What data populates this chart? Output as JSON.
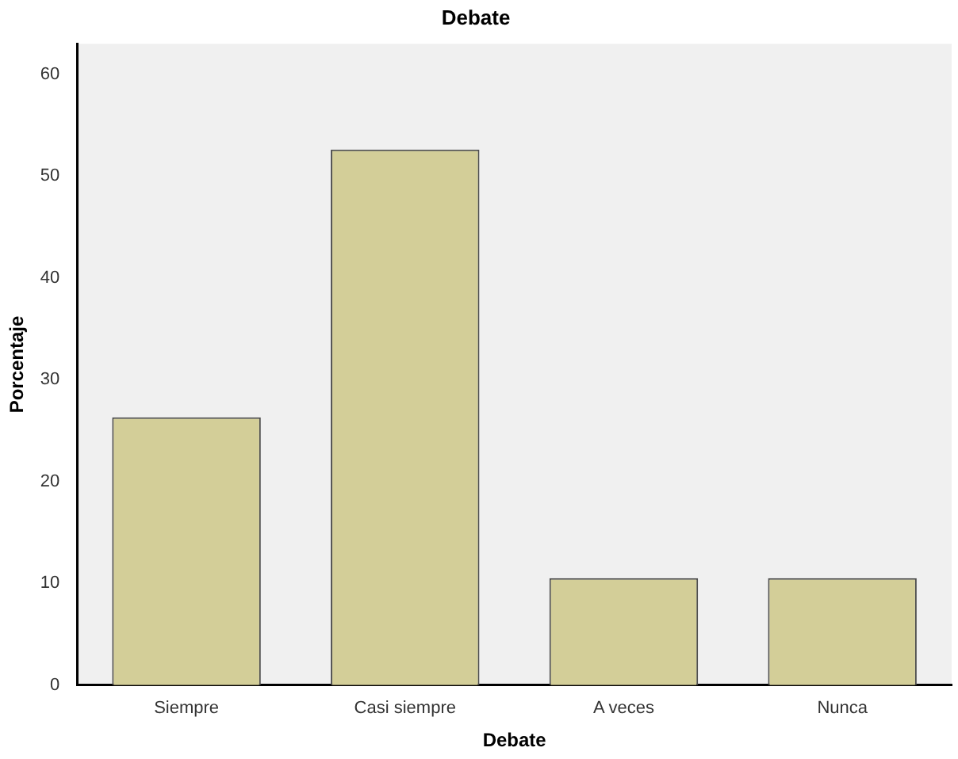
{
  "chart_data": {
    "type": "bar",
    "title": "Debate",
    "xlabel": "Debate",
    "ylabel": "Porcentaje",
    "categories": [
      "Siempre",
      "Casi siempre",
      "A veces",
      "Nunca"
    ],
    "values": [
      26.3,
      52.6,
      10.5,
      10.5
    ],
    "color": "#d3ce98",
    "ylim": [
      0,
      63
    ],
    "yticks": [
      0,
      10,
      20,
      30,
      40,
      50,
      60
    ],
    "grid": false,
    "legend": false
  }
}
